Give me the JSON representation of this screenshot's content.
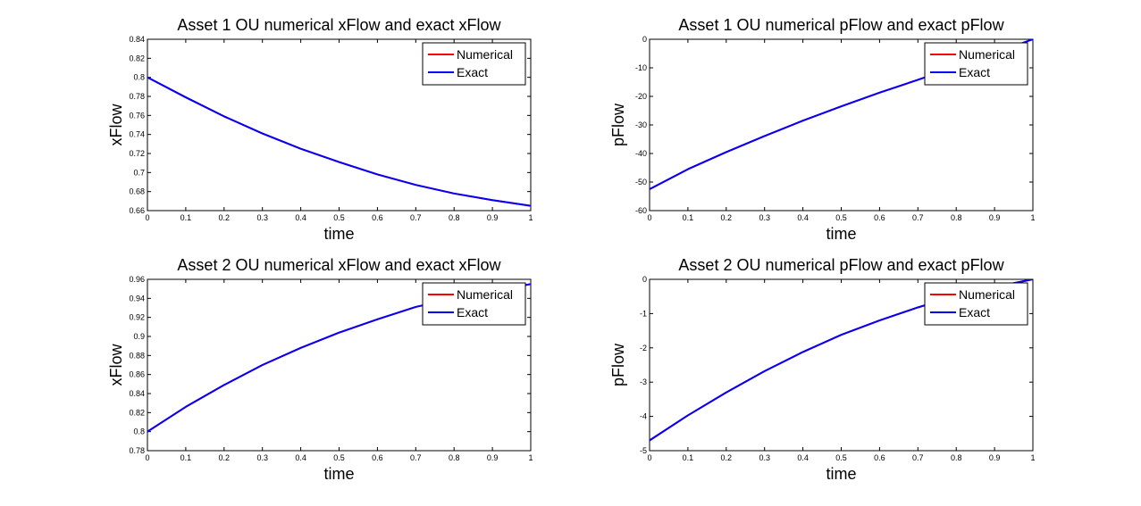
{
  "figure_background": "#ffffff",
  "chart_data": [
    {
      "type": "line",
      "title": "Asset 1 OU numerical xFlow and exact xFlow",
      "xlabel": "time",
      "ylabel": "xFlow",
      "xlim": [
        0,
        1
      ],
      "ylim": [
        0.66,
        0.84
      ],
      "xticks": [
        "0",
        "0.1",
        "0.2",
        "0.3",
        "0.4",
        "0.5",
        "0.6",
        "0.7",
        "0.8",
        "0.9",
        "1"
      ],
      "yticks": [
        "0.66",
        "0.68",
        "0.7",
        "0.72",
        "0.74",
        "0.76",
        "0.78",
        "0.8",
        "0.82",
        "0.84"
      ],
      "grid": false,
      "legend": "top-right",
      "x": [
        0,
        0.1,
        0.2,
        0.3,
        0.4,
        0.5,
        0.6,
        0.7,
        0.8,
        0.9,
        1.0
      ],
      "series": [
        {
          "name": "Numerical",
          "color": "#ff0000",
          "values": [
            0.8,
            0.779,
            0.759,
            0.741,
            0.725,
            0.711,
            0.698,
            0.687,
            0.678,
            0.671,
            0.665
          ]
        },
        {
          "name": "Exact",
          "color": "#0000ff",
          "values": [
            0.8,
            0.779,
            0.759,
            0.741,
            0.725,
            0.711,
            0.698,
            0.687,
            0.678,
            0.671,
            0.665
          ]
        }
      ]
    },
    {
      "type": "line",
      "title": "Asset 1 OU numerical pFlow and exact pFlow",
      "xlabel": "time",
      "ylabel": "pFlow",
      "xlim": [
        0,
        1
      ],
      "ylim": [
        -60,
        0
      ],
      "xticks": [
        "0",
        "0.1",
        "0.2",
        "0.3",
        "0.4",
        "0.5",
        "0.6",
        "0.7",
        "0.8",
        "0.9",
        "1"
      ],
      "yticks": [
        "-60",
        "-50",
        "-40",
        "-30",
        "-20",
        "-10",
        "0"
      ],
      "grid": false,
      "legend": "top-right",
      "x": [
        0,
        0.1,
        0.2,
        0.3,
        0.4,
        0.5,
        0.6,
        0.7,
        0.8,
        0.9,
        1.0
      ],
      "series": [
        {
          "name": "Numerical",
          "color": "#ff0000",
          "values": [
            -52.5,
            -45.5,
            -39.5,
            -33.9,
            -28.5,
            -23.5,
            -18.7,
            -14.2,
            -9.5,
            -4.8,
            0
          ]
        },
        {
          "name": "Exact",
          "color": "#0000ff",
          "values": [
            -52.5,
            -45.5,
            -39.5,
            -33.9,
            -28.5,
            -23.5,
            -18.7,
            -14.2,
            -9.5,
            -4.8,
            0
          ]
        }
      ]
    },
    {
      "type": "line",
      "title": "Asset 2 OU numerical xFlow and exact xFlow",
      "xlabel": "time",
      "ylabel": "xFlow",
      "xlim": [
        0,
        1
      ],
      "ylim": [
        0.78,
        0.96
      ],
      "xticks": [
        "0",
        "0.1",
        "0.2",
        "0.3",
        "0.4",
        "0.5",
        "0.6",
        "0.7",
        "0.8",
        "0.9",
        "1"
      ],
      "yticks": [
        "0.78",
        "0.8",
        "0.82",
        "0.84",
        "0.86",
        "0.88",
        "0.9",
        "0.92",
        "0.94",
        "0.96"
      ],
      "grid": false,
      "legend": "top-right",
      "x": [
        0,
        0.1,
        0.2,
        0.3,
        0.4,
        0.5,
        0.6,
        0.7,
        0.8,
        0.9,
        1.0
      ],
      "series": [
        {
          "name": "Numerical",
          "color": "#ff0000",
          "values": [
            0.8,
            0.826,
            0.849,
            0.87,
            0.888,
            0.904,
            0.918,
            0.931,
            0.94,
            0.948,
            0.955
          ]
        },
        {
          "name": "Exact",
          "color": "#0000ff",
          "values": [
            0.8,
            0.826,
            0.849,
            0.87,
            0.888,
            0.904,
            0.918,
            0.931,
            0.94,
            0.948,
            0.955
          ]
        }
      ]
    },
    {
      "type": "line",
      "title": "Asset 2 OU numerical pFlow and exact pFlow",
      "xlabel": "time",
      "ylabel": "pFlow",
      "xlim": [
        0,
        1
      ],
      "ylim": [
        -5,
        0
      ],
      "xticks": [
        "0",
        "0.1",
        "0.2",
        "0.3",
        "0.4",
        "0.5",
        "0.6",
        "0.7",
        "0.8",
        "0.9",
        "1"
      ],
      "yticks": [
        "-5",
        "-4",
        "-3",
        "-2",
        "-1",
        "0"
      ],
      "grid": false,
      "legend": "top-right",
      "x": [
        0,
        0.1,
        0.2,
        0.3,
        0.4,
        0.5,
        0.6,
        0.7,
        0.8,
        0.9,
        1.0
      ],
      "series": [
        {
          "name": "Numerical",
          "color": "#ff0000",
          "values": [
            -4.7,
            -3.97,
            -3.3,
            -2.68,
            -2.12,
            -1.62,
            -1.2,
            -0.82,
            -0.48,
            -0.22,
            0
          ]
        },
        {
          "name": "Exact",
          "color": "#0000ff",
          "values": [
            -4.7,
            -3.97,
            -3.3,
            -2.68,
            -2.12,
            -1.62,
            -1.2,
            -0.82,
            -0.48,
            -0.22,
            0
          ]
        }
      ]
    }
  ]
}
